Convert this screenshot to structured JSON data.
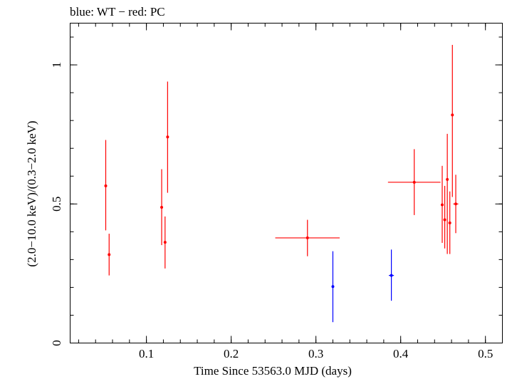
{
  "chart_data": {
    "type": "scatter",
    "title": "blue: WT − red: PC",
    "xlabel": "Time Since 53563.0 MJD (days)",
    "ylabel": "(2.0−10.0 keV)/(0.3−2.0 keV)",
    "xlim": [
      0.01,
      0.52
    ],
    "ylim": [
      0,
      1.15
    ],
    "x_ticks": [
      0.1,
      0.2,
      0.3,
      0.4,
      0.5
    ],
    "x_tick_labels": [
      "0.1",
      "0.2",
      "0.3",
      "0.4",
      "0.5"
    ],
    "y_ticks": [
      0,
      0.5,
      1
    ],
    "y_tick_labels": [
      "0",
      "0.5",
      "1"
    ],
    "grid": false,
    "series": [
      {
        "color": "#0000ff",
        "points": [
          {
            "x": 0.32,
            "y": 0.203,
            "xerr": 0.0,
            "ylo": 0.075,
            "yhi": 0.33
          },
          {
            "x": 0.389,
            "y": 0.243,
            "xerr": 0.003,
            "ylo": 0.152,
            "yhi": 0.336
          }
        ]
      },
      {
        "color": "#ff0000",
        "points": [
          {
            "x": 0.052,
            "y": 0.565,
            "xerr": 0.0,
            "ylo": 0.405,
            "yhi": 0.73
          },
          {
            "x": 0.056,
            "y": 0.318,
            "xerr": 0.0,
            "ylo": 0.243,
            "yhi": 0.393
          },
          {
            "x": 0.118,
            "y": 0.488,
            "xerr": 0.0,
            "ylo": 0.352,
            "yhi": 0.625
          },
          {
            "x": 0.122,
            "y": 0.362,
            "xerr": 0.0,
            "ylo": 0.268,
            "yhi": 0.455
          },
          {
            "x": 0.125,
            "y": 0.741,
            "xerr": 0.0,
            "ylo": 0.54,
            "yhi": 0.94
          },
          {
            "x": 0.29,
            "y": 0.378,
            "xerr": 0.038,
            "ylo": 0.312,
            "yhi": 0.443
          },
          {
            "x": 0.416,
            "y": 0.578,
            "xerr": 0.031,
            "ylo": 0.46,
            "yhi": 0.697
          },
          {
            "x": 0.449,
            "y": 0.497,
            "xerr": 0.0,
            "ylo": 0.36,
            "yhi": 0.637
          },
          {
            "x": 0.452,
            "y": 0.443,
            "xerr": 0.0,
            "ylo": 0.34,
            "yhi": 0.565
          },
          {
            "x": 0.455,
            "y": 0.588,
            "xerr": 0.0,
            "ylo": 0.32,
            "yhi": 0.752
          },
          {
            "x": 0.458,
            "y": 0.432,
            "xerr": 0.0,
            "ylo": 0.32,
            "yhi": 0.545
          },
          {
            "x": 0.461,
            "y": 0.82,
            "xerr": 0.0,
            "ylo": 0.525,
            "yhi": 1.072
          },
          {
            "x": 0.465,
            "y": 0.5,
            "xerr": 0.003,
            "ylo": 0.395,
            "yhi": 0.605
          }
        ]
      }
    ]
  }
}
